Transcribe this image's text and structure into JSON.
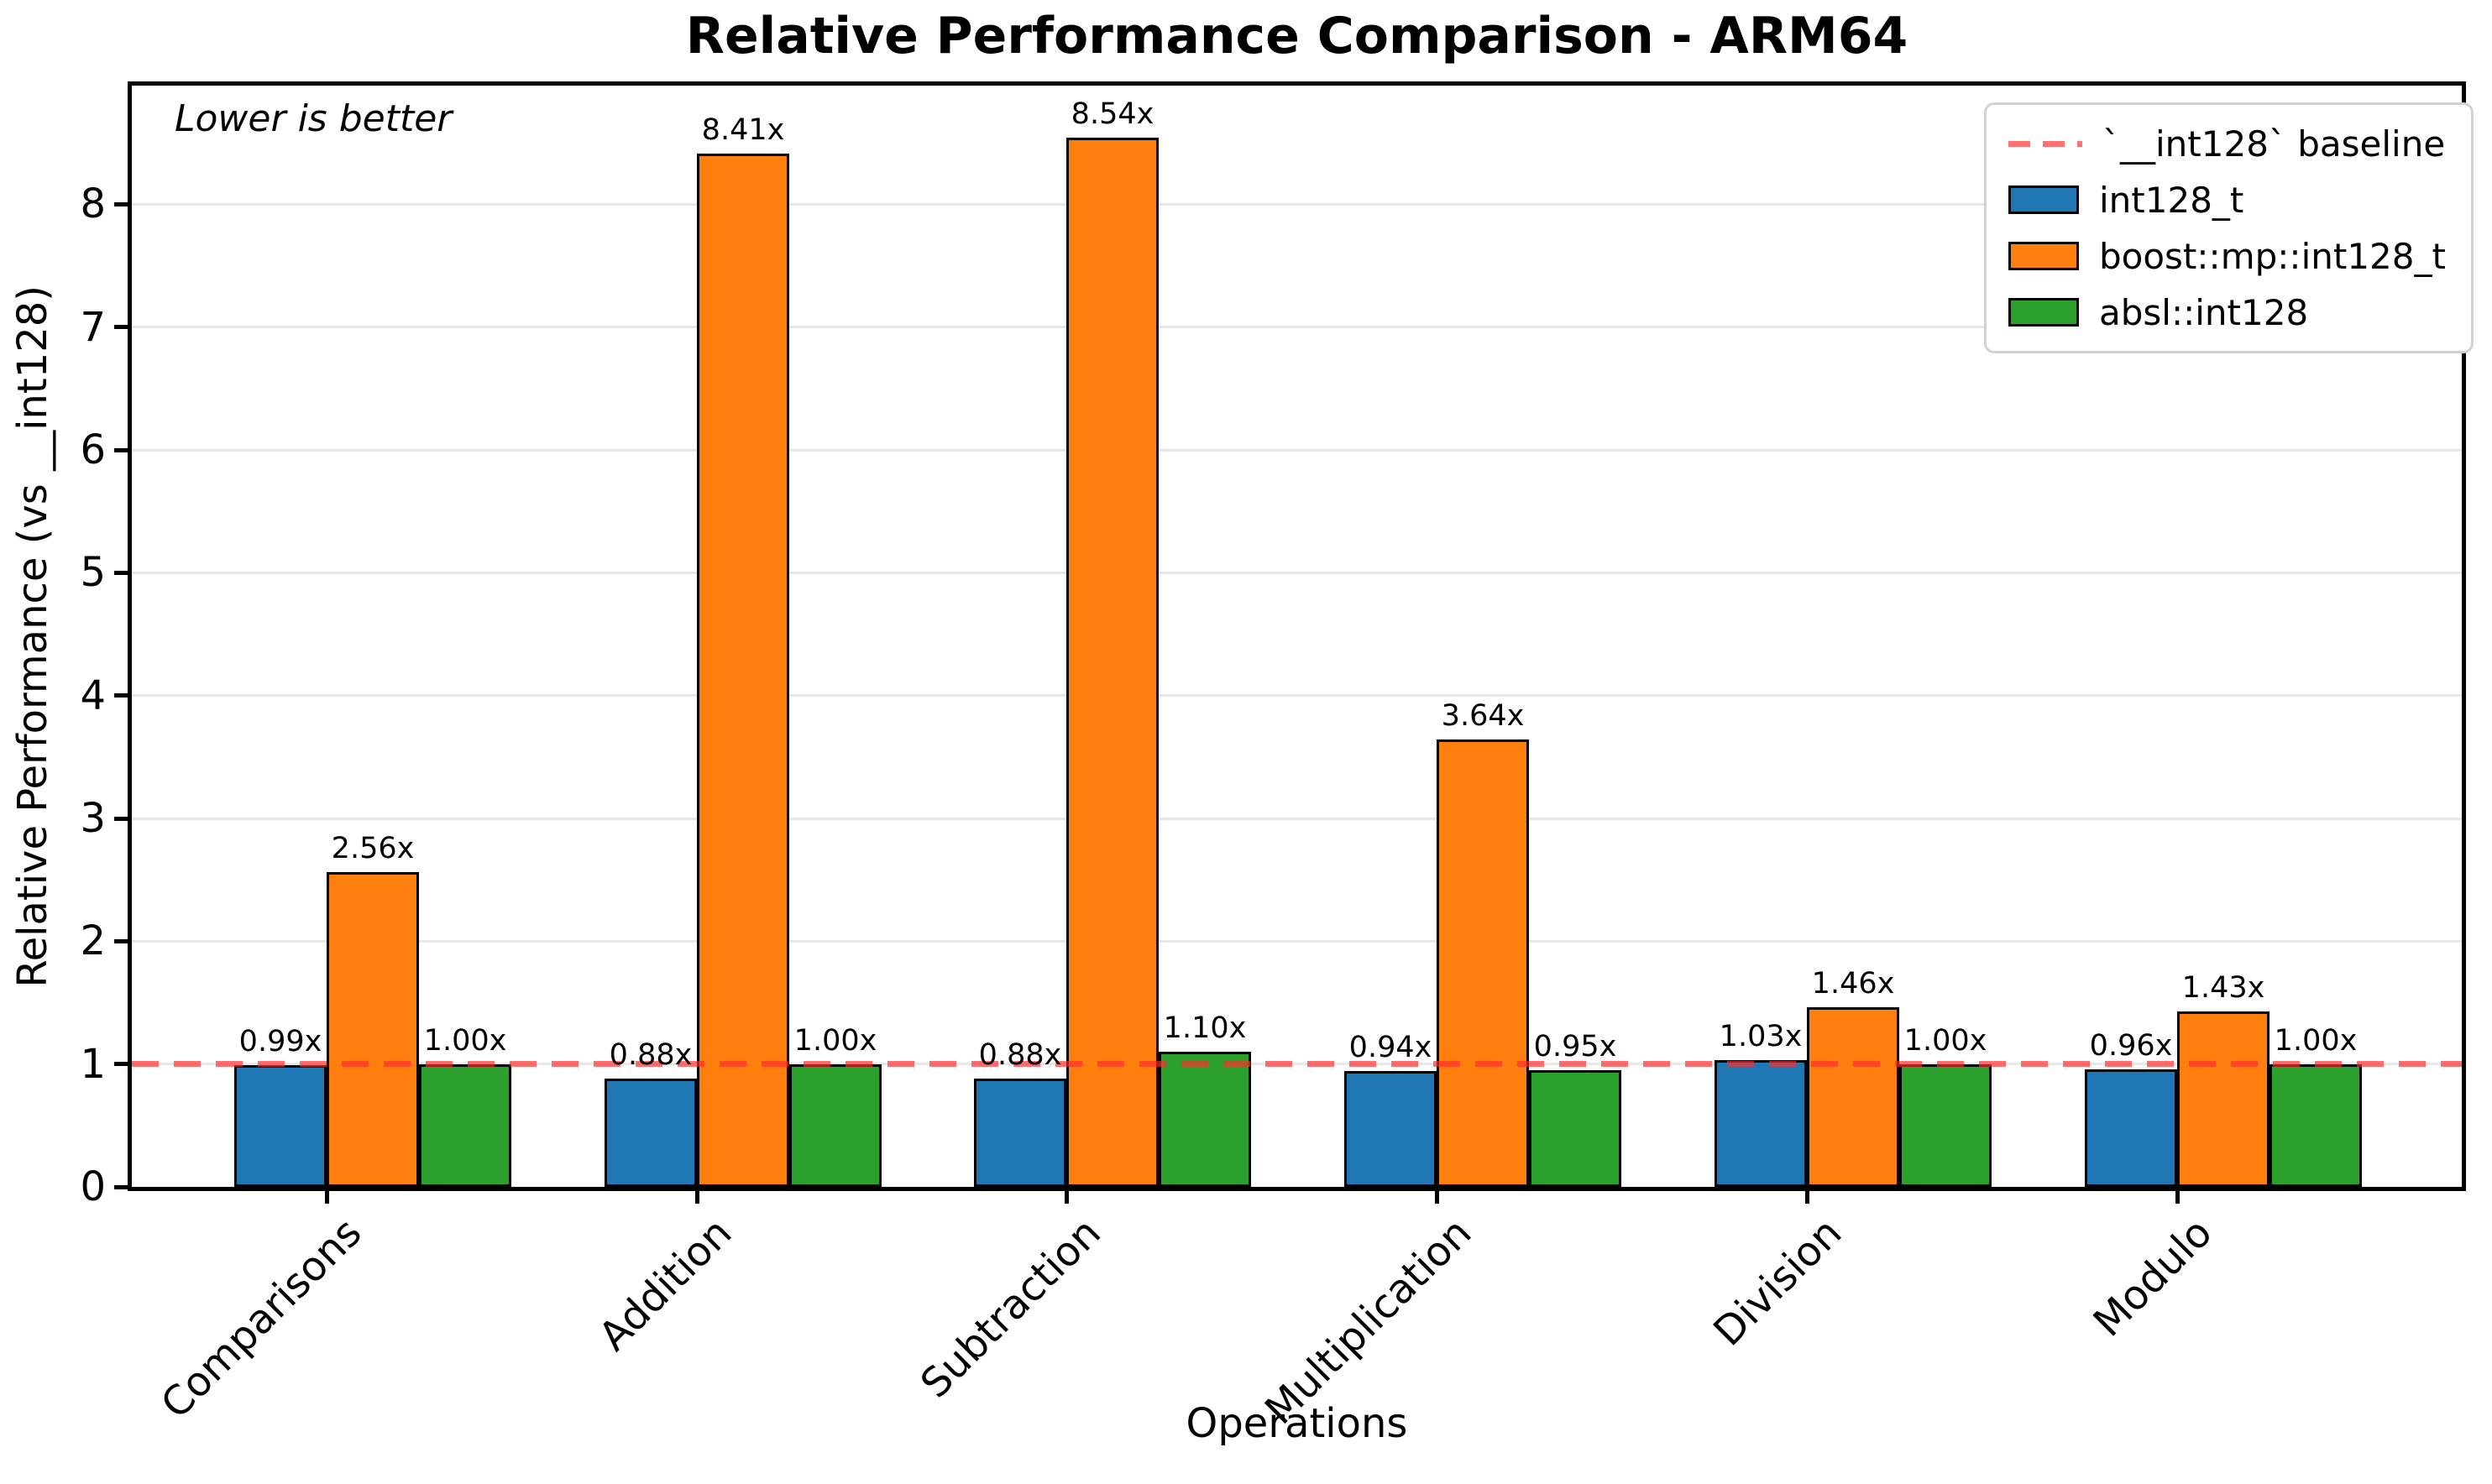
{
  "chart_data": {
    "type": "bar",
    "title": "Relative Performance Comparison - ARM64",
    "xlabel": "Operations",
    "ylabel": "Relative Performance (vs __int128)",
    "annotation": "Lower is better",
    "categories": [
      "Comparisons",
      "Addition",
      "Subtraction",
      "Multiplication",
      "Division",
      "Modulo"
    ],
    "series": [
      {
        "name": "int128_t",
        "color": "#1f77b4",
        "values": [
          0.99,
          0.88,
          0.88,
          0.94,
          1.03,
          0.96
        ],
        "labels": [
          "0.99x",
          "0.88x",
          "0.88x",
          "0.94x",
          "1.03x",
          "0.96x"
        ]
      },
      {
        "name": "boost::mp::int128_t",
        "color": "#ff7f0e",
        "values": [
          2.56,
          8.41,
          8.54,
          3.64,
          1.46,
          1.43
        ],
        "labels": [
          "2.56x",
          "8.41x",
          "8.54x",
          "3.64x",
          "1.46x",
          "1.43x"
        ]
      },
      {
        "name": "absl::int128",
        "color": "#2ca02c",
        "values": [
          1.0,
          1.0,
          1.1,
          0.95,
          1.0,
          1.0
        ],
        "labels": [
          "1.00x",
          "1.00x",
          "1.10x",
          "0.95x",
          "1.00x",
          "1.00x"
        ]
      }
    ],
    "baseline": {
      "value": 1.0,
      "label": "`__int128` baseline",
      "color": "#ff2d2d",
      "style": "dashed"
    },
    "ylim": [
      0,
      9
    ],
    "yticks": [
      "0",
      "1",
      "2",
      "3",
      "4",
      "5",
      "6",
      "7",
      "8"
    ],
    "grid": true,
    "legend_position": "upper right",
    "bar_edge_color": "#000000",
    "grid_color": "#e7e7e7"
  }
}
